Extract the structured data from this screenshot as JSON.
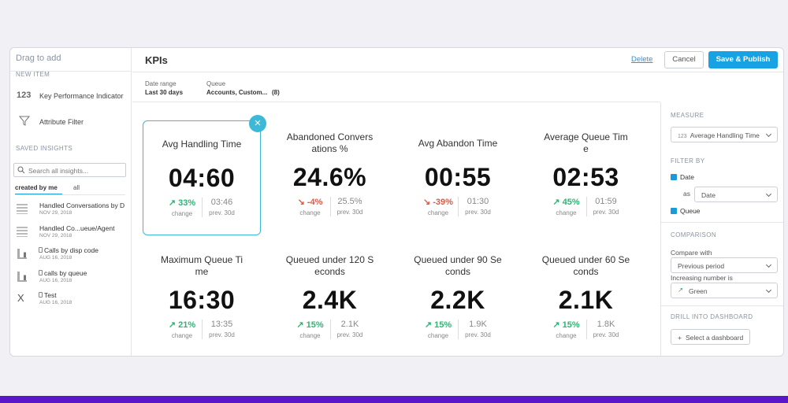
{
  "sidebar": {
    "title": "Drag to add",
    "new_item_heading": "NEW ITEM",
    "new_items": [
      {
        "icon": "123",
        "label": "Key Performance Indicator"
      },
      {
        "label": "Attribute Filter"
      }
    ],
    "saved_heading": "SAVED INSIGHTS",
    "search_placeholder": "Search all insights...",
    "tabs": [
      "created by me",
      "all"
    ],
    "insights": [
      {
        "kind": "table",
        "name": "Handled Conversations by D",
        "date": "NOV 29, 2018"
      },
      {
        "kind": "table",
        "name": "Handled Co...ueue/Agent",
        "date": "NOV 29, 2018"
      },
      {
        "kind": "bars",
        "locked": true,
        "name": "Calls by disp code",
        "date": "AUG 16, 2018"
      },
      {
        "kind": "bars",
        "locked": true,
        "name": "calls by queue",
        "date": "AUG 16, 2018"
      },
      {
        "icon": "X",
        "locked": true,
        "name": "Test",
        "date": "AUG 16, 2018"
      }
    ]
  },
  "header": {
    "title": "KPIs",
    "delete": "Delete",
    "cancel": "Cancel",
    "publish": "Save & Publish"
  },
  "filters": [
    {
      "label": "Date range",
      "value": "Last 30 days"
    },
    {
      "label": "Queue",
      "value": "Accounts, Custom...",
      "count": "(8)"
    }
  ],
  "kpis": [
    {
      "title": "Avg Handling Time",
      "value": "04:60",
      "trend": "up",
      "change": "33%",
      "change_label": "change",
      "prev": "03:46",
      "prev_label": "prev. 30d",
      "selected": true
    },
    {
      "title": "Abandoned Conversations %",
      "value": "24.6%",
      "trend": "down",
      "change": "-4%",
      "change_label": "change",
      "prev": "25.5%",
      "prev_label": "prev. 30d"
    },
    {
      "title": "Avg Abandon Time",
      "value": "00:55",
      "trend": "down",
      "change": "-39%",
      "change_label": "change",
      "prev": "01:30",
      "prev_label": "prev. 30d"
    },
    {
      "title": "Average Queue Time",
      "value": "02:53",
      "trend": "up",
      "change": "45%",
      "change_label": "change",
      "prev": "01:59",
      "prev_label": "prev. 30d"
    },
    {
      "title": "Maximum Queue Time",
      "value": "16:30",
      "trend": "up",
      "change": "21%",
      "change_label": "change",
      "prev": "13:35",
      "prev_label": "prev. 30d"
    },
    {
      "title": "Queued under 120 Seconds",
      "value": "2.4K",
      "trend": "up",
      "change": "15%",
      "change_label": "change",
      "prev": "2.1K",
      "prev_label": "prev. 30d"
    },
    {
      "title": "Queued under 90 Seconds",
      "value": "2.2K",
      "trend": "up",
      "change": "15%",
      "change_label": "change",
      "prev": "1.9K",
      "prev_label": "prev. 30d"
    },
    {
      "title": "Queued under 60 Seconds",
      "value": "2.1K",
      "trend": "up",
      "change": "15%",
      "change_label": "change",
      "prev": "1.8K",
      "prev_label": "prev. 30d"
    }
  ],
  "panel": {
    "measure_heading": "MEASURE",
    "measure_icon": "123",
    "measure": "Average Handling Time",
    "filter_heading": "FILTER BY",
    "date_check": "Date",
    "as_label": "as",
    "as_value": "Date",
    "queue_check": "Queue",
    "comparison_heading": "COMPARISON",
    "compare_label": "Compare with",
    "compare_value": "Previous period",
    "increasing_label": "Increasing number is",
    "increasing_value": "Green",
    "drill_heading": "DRILL INTO DASHBOARD",
    "drill_button": "Select a dashboard"
  }
}
